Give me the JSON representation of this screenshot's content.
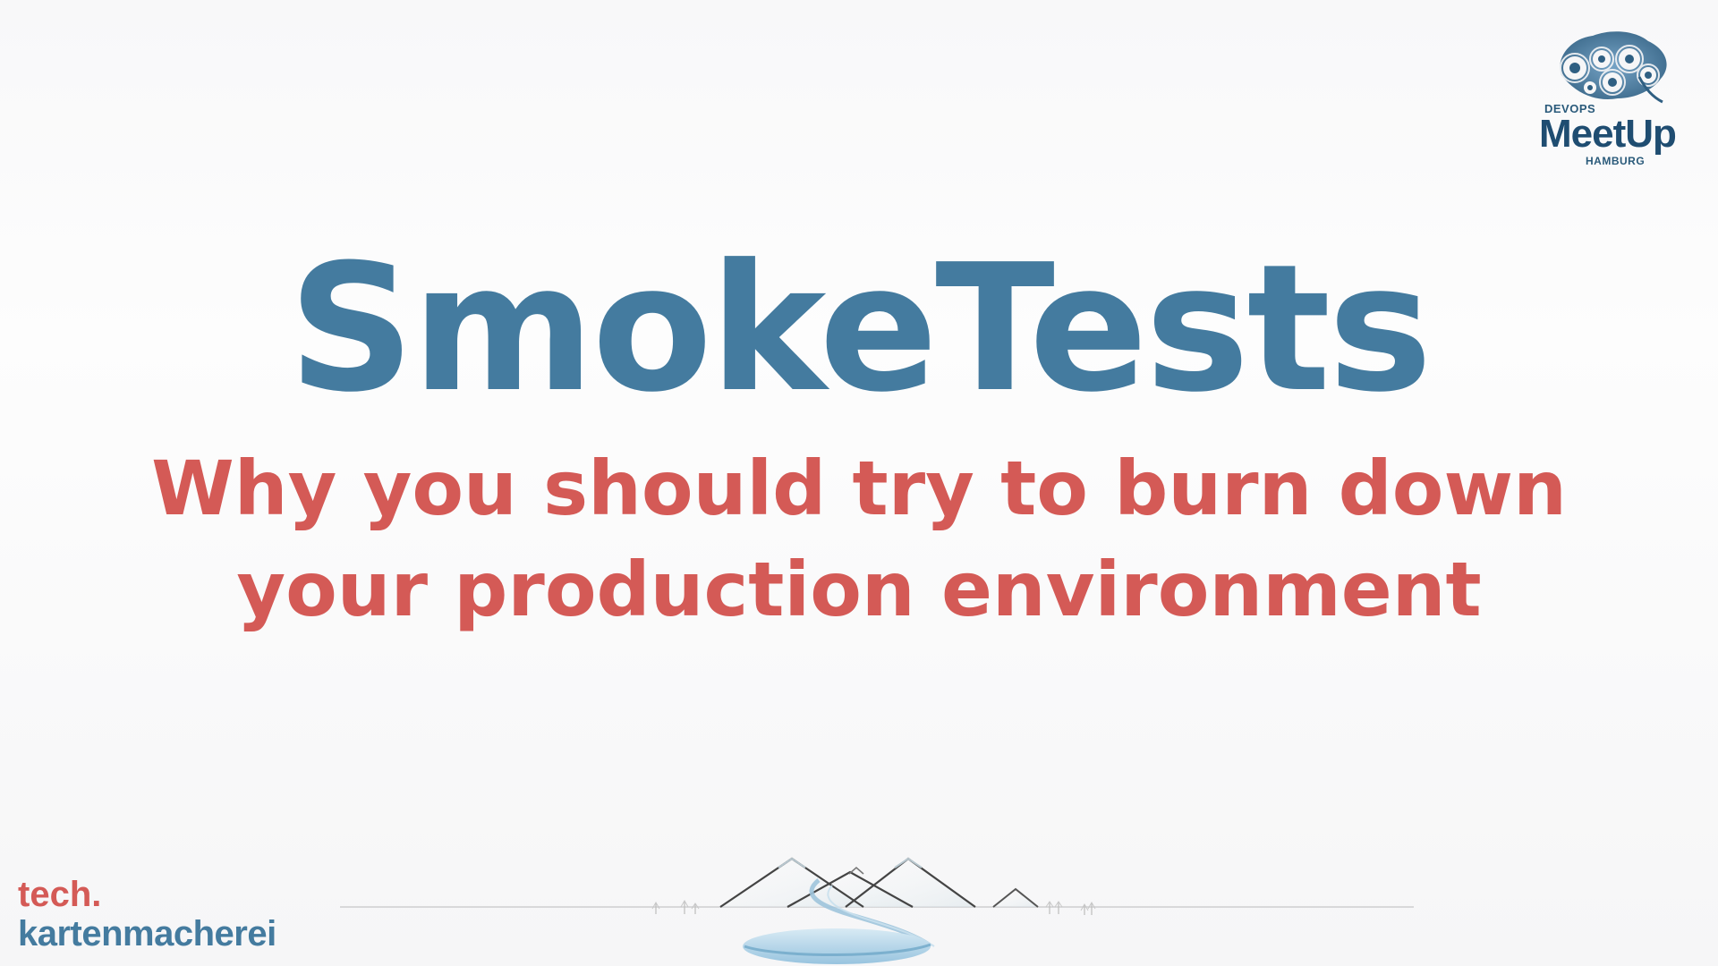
{
  "slide": {
    "title": "SmokeTests",
    "subtitle": {
      "line1": "Why you should try to burn down",
      "line2": "your production environment"
    }
  },
  "logos": {
    "meetup": {
      "icon": "gears-brain-icon",
      "top_text": "DEVOPS",
      "main_text": "MeetUp",
      "city": "HAMBURG"
    },
    "company": {
      "line1": "tech.",
      "line2": "kartenmacherei"
    }
  },
  "decorations": {
    "landscape": "mountains-lake-illustration"
  },
  "colors": {
    "title": "#447b9f",
    "subtitle": "#d45a56",
    "meetup_text": "#1f4d71"
  }
}
